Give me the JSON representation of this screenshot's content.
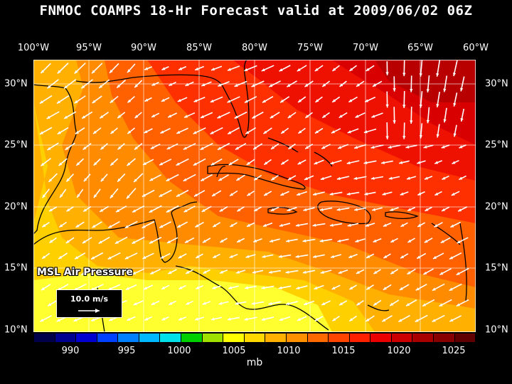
{
  "title": "FNMOC COAMPS 18-Hr Forecast valid at 2009/06/02 06Z",
  "lon_labels": [
    "100°W",
    "95°W",
    "90°W",
    "85°W",
    "80°W",
    "75°W",
    "70°W",
    "65°W",
    "60°W"
  ],
  "lat_labels": [
    "30°N",
    "25°N",
    "20°N",
    "15°N",
    "10°N"
  ],
  "field_label": "MSL Air Pressure",
  "wind_scale_label": "10.0 m/s",
  "colorbar": {
    "ticks": [
      "990",
      "995",
      "1000",
      "1005",
      "1010",
      "1015",
      "1020",
      "1025"
    ],
    "unit": "mb",
    "colors": [
      "#00004a",
      "#000090",
      "#0000d0",
      "#0040ff",
      "#0080ff",
      "#00b8ff",
      "#00e0e8",
      "#00d000",
      "#a0e000",
      "#ffff00",
      "#ffd800",
      "#ffb000",
      "#ff9000",
      "#ff6a00",
      "#ff4400",
      "#ff2000",
      "#ea0000",
      "#cc0000",
      "#a80000",
      "#880000",
      "#600000"
    ]
  },
  "pressure_colors": {
    "p1008": "#ffff30",
    "p1010": "#ffd000",
    "p1012": "#ffb000",
    "p1014": "#ff8c00",
    "p1016": "#ff6000",
    "p1018": "#ff3000",
    "p1020": "#ee1000",
    "p1022": "#d80000",
    "p1024": "#b80000"
  }
}
